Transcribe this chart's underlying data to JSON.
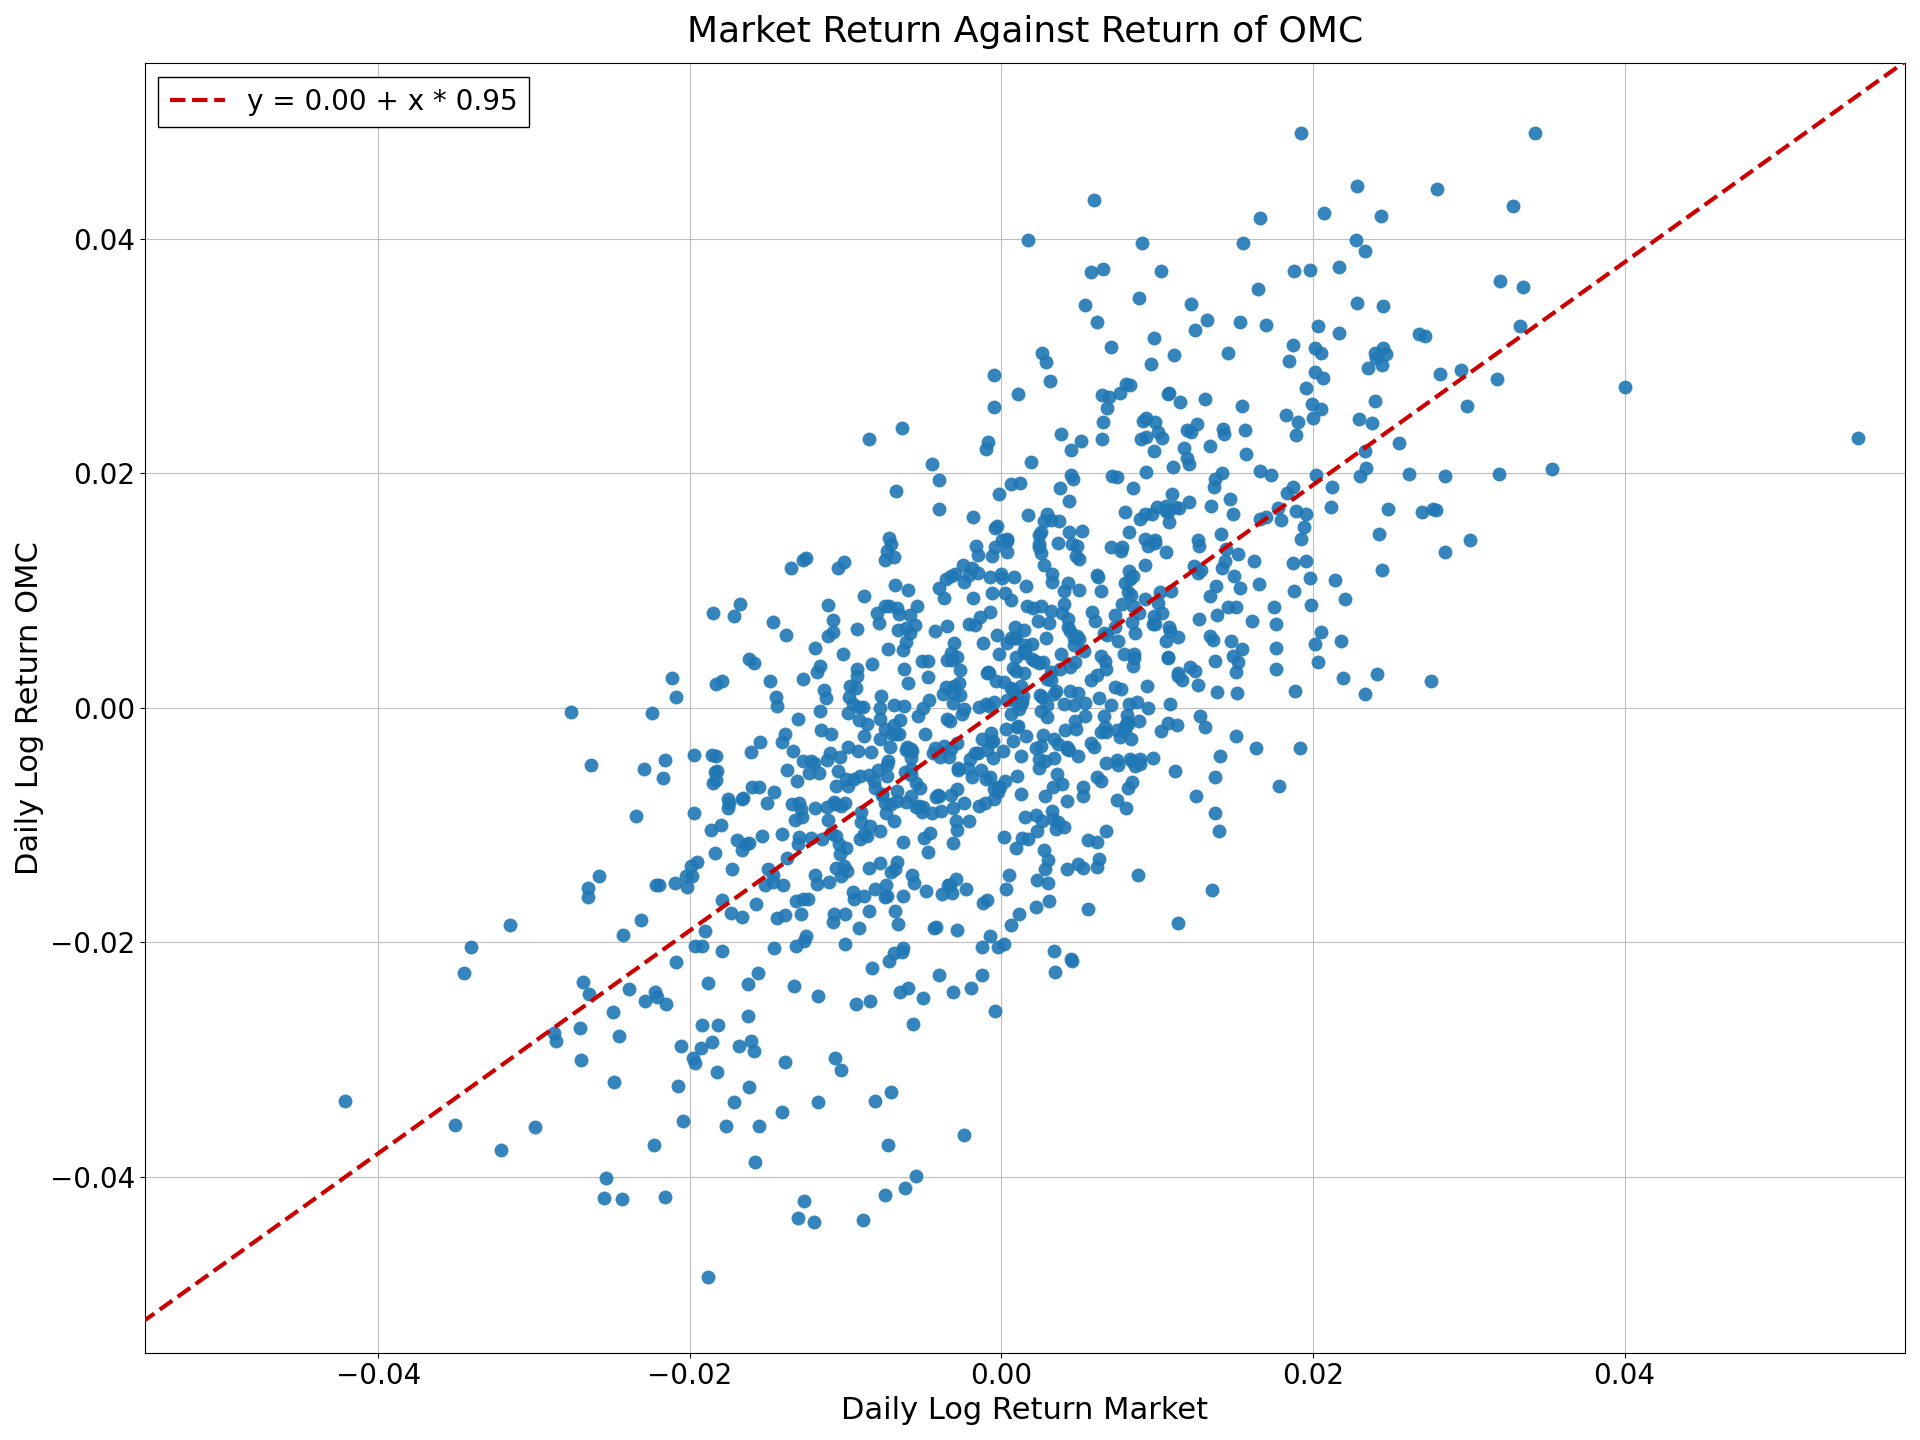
{
  "title": "Market Return Against Return of OMC",
  "xlabel": "Daily Log Return Market",
  "ylabel": "Daily Log Return OMC",
  "intercept": 0.0,
  "slope": 0.95,
  "legend_label": "y = 0.00 + x * 0.95",
  "dot_color": "#1f77b4",
  "line_color": "#cc0000",
  "xlim": [
    -0.055,
    0.058
  ],
  "ylim": [
    -0.055,
    0.055
  ],
  "xticks": [
    -0.04,
    -0.02,
    0.0,
    0.02,
    0.04
  ],
  "yticks": [
    -0.04,
    -0.02,
    0.0,
    0.02,
    0.04
  ],
  "seed": 42,
  "n_points": 1000,
  "sigma_market": 0.013,
  "sigma_noise": 0.012,
  "title_fontsize": 26,
  "label_fontsize": 22,
  "tick_fontsize": 20,
  "legend_fontsize": 20,
  "marker_size": 100,
  "marker_alpha": 0.9,
  "line_width": 3.0,
  "figwidth": 19.2,
  "figheight": 14.4,
  "dpi": 100
}
